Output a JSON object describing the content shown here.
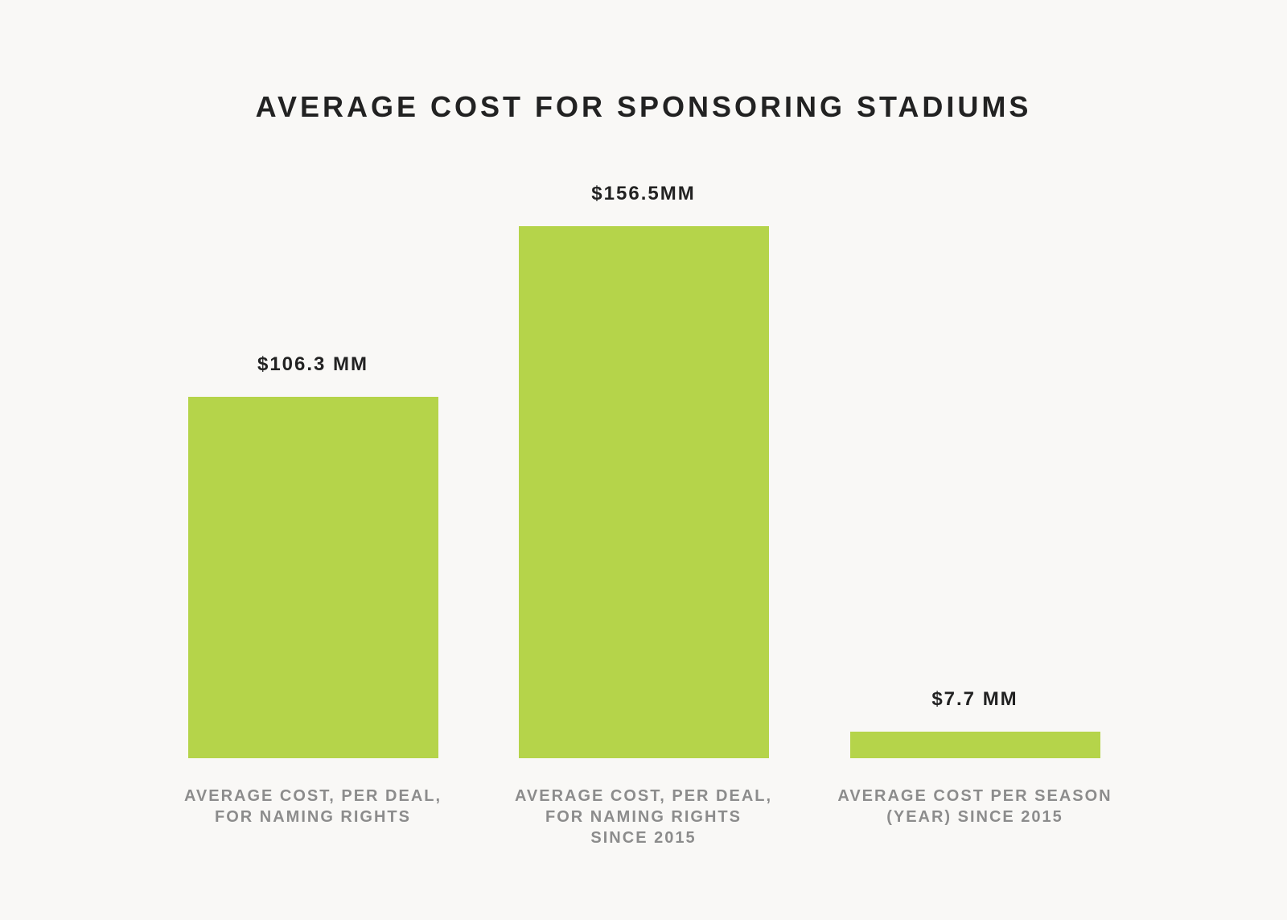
{
  "colors": {
    "background": "#f9f8f6",
    "bar": "#b5d44a",
    "title": "#222222",
    "value_label": "#222222",
    "category_label": "#8c8c8c"
  },
  "chart_data": {
    "type": "bar",
    "title": "AVERAGE COST FOR SPONSORING STADIUMS",
    "xlabel": "",
    "ylabel": "",
    "grid": false,
    "ylim": [
      0,
      156.5
    ],
    "categories": [
      [
        "AVERAGE COST, PER DEAL,",
        "FOR NAMING RIGHTS"
      ],
      [
        "AVERAGE COST, PER DEAL,",
        "FOR NAMING RIGHTS",
        "SINCE 2015"
      ],
      [
        "AVERAGE COST PER SEASON",
        "(YEAR) SINCE 2015"
      ]
    ],
    "values": [
      106.3,
      156.5,
      7.7
    ],
    "value_labels": [
      "$106.3 MM",
      "$156.5MM",
      "$7.7 MM"
    ]
  }
}
